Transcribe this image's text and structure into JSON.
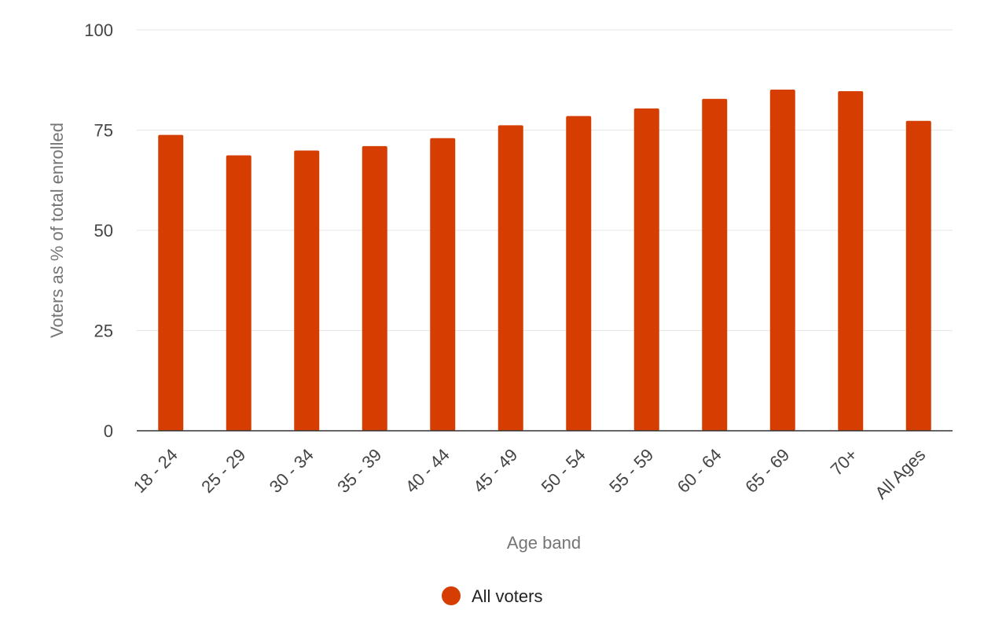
{
  "chart_data": {
    "type": "bar",
    "title": "",
    "xlabel": "Age band",
    "ylabel": "Voters as % of total enrolled",
    "categories": [
      "18 - 24",
      "25 - 29",
      "30 - 34",
      "35 - 39",
      "40 - 44",
      "45 - 49",
      "50 - 54",
      "55 - 59",
      "60 - 64",
      "65 - 69",
      "70+",
      "All Ages"
    ],
    "series": [
      {
        "name": "All voters",
        "color": "#d53e00",
        "values": [
          73.8,
          68.7,
          69.9,
          71.0,
          73.0,
          76.2,
          78.5,
          80.4,
          82.8,
          85.1,
          84.7,
          77.3
        ]
      }
    ],
    "ylim": [
      0,
      100
    ],
    "yticks": [
      0,
      25,
      50,
      75,
      100
    ],
    "grid": true,
    "legend_position": "bottom"
  }
}
